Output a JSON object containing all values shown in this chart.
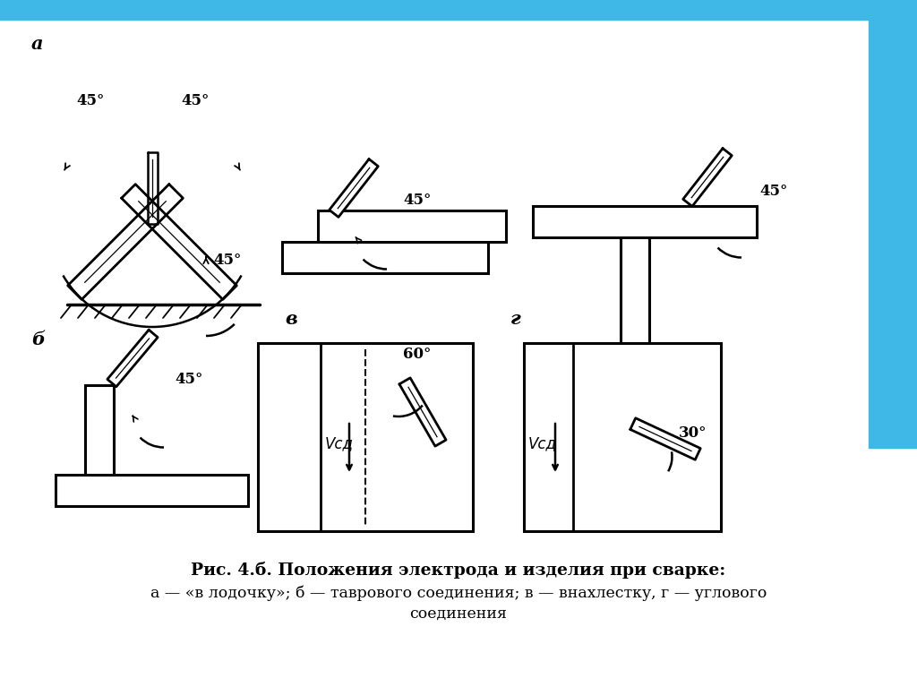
{
  "bg_color": "#ffffff",
  "blue_bar_color": "#3fb8e8",
  "line_color": "#000000",
  "title_line1": "Рис. 4.б. Положения электрода и изделия при сварке:",
  "title_line2": "а — «в лодочку»; б — таврового соединения; в — внахлестку, г — углового",
  "title_line3": "соединения",
  "label_a": "а",
  "label_b": "б",
  "label_v": "в",
  "label_g": "г",
  "angle_45": "45°",
  "angle_60": "60°",
  "angle_30": "30°",
  "vsd": "Vсд"
}
